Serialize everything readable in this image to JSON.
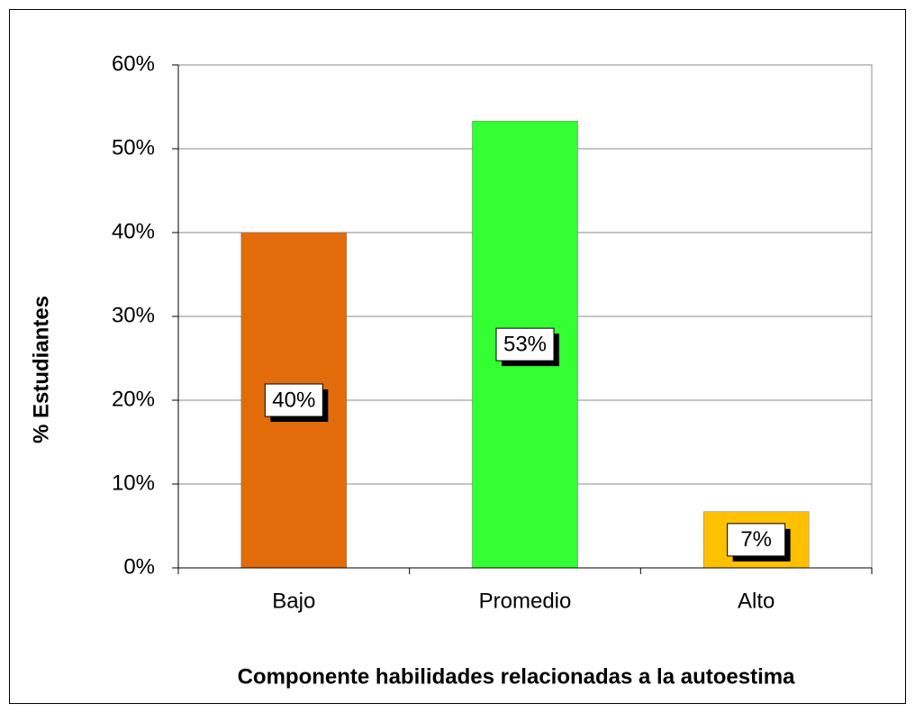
{
  "chart_data": {
    "type": "bar",
    "xlabel": "Componente habilidades relacionadas a la autoestima",
    "ylabel": "% Estudiantes",
    "categories": [
      "Bajo",
      "Promedio",
      "Alto"
    ],
    "values": [
      40,
      53.3,
      6.7
    ],
    "value_labels": [
      "40%",
      "53%",
      "7%"
    ],
    "colors": [
      "#e36c0a",
      "#33ff33",
      "#ffc000"
    ],
    "ylim": [
      0,
      60
    ],
    "yticks": [
      {
        "value": 0,
        "label": "0%"
      },
      {
        "value": 10,
        "label": "10%"
      },
      {
        "value": 20,
        "label": "20%"
      },
      {
        "value": 30,
        "label": "30%"
      },
      {
        "value": 40,
        "label": "40%"
      },
      {
        "value": 50,
        "label": "50%"
      },
      {
        "value": 60,
        "label": "60%"
      }
    ],
    "grid": true
  }
}
